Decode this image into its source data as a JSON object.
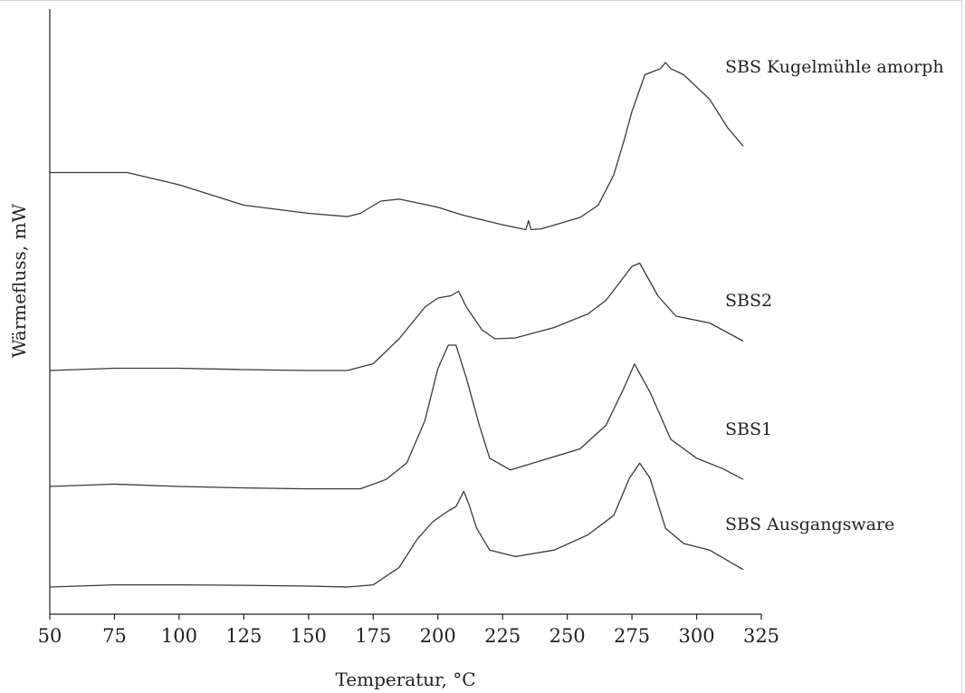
{
  "chart_data": {
    "type": "line",
    "title": "",
    "xlabel": "Temperatur, °C",
    "ylabel": "Wärmefluss, mW",
    "xlim": [
      50,
      325
    ],
    "x_ticks": [
      50,
      75,
      100,
      125,
      150,
      175,
      200,
      225,
      250,
      275,
      300,
      325
    ],
    "y_ticks_shown": false,
    "grid": false,
    "legend": "labels next to curves (right)",
    "y_unit": "arbitrary offset heat flow",
    "series": [
      {
        "name": "SBS Kugelmühle amorph",
        "points": [
          [
            50,
            0.5
          ],
          [
            80,
            0.5
          ],
          [
            100,
            0.2
          ],
          [
            125,
            -0.3
          ],
          [
            150,
            -0.5
          ],
          [
            165,
            -0.58
          ],
          [
            170,
            -0.5
          ],
          [
            178,
            -0.2
          ],
          [
            185,
            -0.15
          ],
          [
            200,
            -0.35
          ],
          [
            210,
            -0.55
          ],
          [
            225,
            -0.78
          ],
          [
            234,
            -0.9
          ],
          [
            235,
            -0.68
          ],
          [
            236,
            -0.9
          ],
          [
            240,
            -0.88
          ],
          [
            255,
            -0.6
          ],
          [
            262,
            -0.3
          ],
          [
            268,
            0.45
          ],
          [
            272,
            1.3
          ],
          [
            275,
            2.0
          ],
          [
            280,
            2.9
          ],
          [
            284,
            3.0
          ],
          [
            286,
            3.05
          ],
          [
            288,
            3.2
          ],
          [
            290,
            3.05
          ],
          [
            295,
            2.9
          ],
          [
            305,
            2.3
          ],
          [
            312,
            1.6
          ],
          [
            318,
            1.15
          ]
        ]
      },
      {
        "name": "SBS2",
        "points": [
          [
            50,
            0
          ],
          [
            75,
            0.05
          ],
          [
            100,
            0.05
          ],
          [
            125,
            0.02
          ],
          [
            150,
            0
          ],
          [
            165,
            0
          ],
          [
            175,
            0.15
          ],
          [
            185,
            0.7
          ],
          [
            195,
            1.4
          ],
          [
            200,
            1.6
          ],
          [
            205,
            1.65
          ],
          [
            208,
            1.75
          ],
          [
            211,
            1.4
          ],
          [
            217,
            0.9
          ],
          [
            222,
            0.7
          ],
          [
            230,
            0.72
          ],
          [
            245,
            0.95
          ],
          [
            258,
            1.25
          ],
          [
            265,
            1.55
          ],
          [
            275,
            2.3
          ],
          [
            278,
            2.37
          ],
          [
            285,
            1.65
          ],
          [
            292,
            1.2
          ],
          [
            305,
            1.05
          ],
          [
            318,
            0.65
          ]
        ]
      },
      {
        "name": "SBS1",
        "points": [
          [
            50,
            0
          ],
          [
            75,
            0.05
          ],
          [
            100,
            0
          ],
          [
            125,
            -0.03
          ],
          [
            150,
            -0.05
          ],
          [
            170,
            -0.05
          ],
          [
            180,
            0.15
          ],
          [
            188,
            0.5
          ],
          [
            195,
            1.4
          ],
          [
            200,
            2.5
          ],
          [
            204,
            3.0
          ],
          [
            207,
            3.0
          ],
          [
            211,
            2.3
          ],
          [
            216,
            1.3
          ],
          [
            220,
            0.6
          ],
          [
            228,
            0.35
          ],
          [
            240,
            0.55
          ],
          [
            255,
            0.8
          ],
          [
            265,
            1.3
          ],
          [
            272,
            2.1
          ],
          [
            276,
            2.6
          ],
          [
            282,
            2.0
          ],
          [
            290,
            1.0
          ],
          [
            300,
            0.6
          ],
          [
            310,
            0.38
          ],
          [
            318,
            0.15
          ]
        ]
      },
      {
        "name": "SBS Ausgangsware",
        "points": [
          [
            50,
            0
          ],
          [
            75,
            0.05
          ],
          [
            100,
            0.05
          ],
          [
            125,
            0.04
          ],
          [
            150,
            0.02
          ],
          [
            165,
            0
          ],
          [
            175,
            0.05
          ],
          [
            185,
            0.45
          ],
          [
            192,
            1.1
          ],
          [
            198,
            1.5
          ],
          [
            204,
            1.75
          ],
          [
            207,
            1.85
          ],
          [
            210,
            2.2
          ],
          [
            212,
            1.9
          ],
          [
            215,
            1.35
          ],
          [
            220,
            0.85
          ],
          [
            230,
            0.7
          ],
          [
            245,
            0.85
          ],
          [
            258,
            1.2
          ],
          [
            268,
            1.65
          ],
          [
            274,
            2.5
          ],
          [
            278,
            2.85
          ],
          [
            282,
            2.5
          ],
          [
            288,
            1.35
          ],
          [
            295,
            1.0
          ],
          [
            305,
            0.85
          ],
          [
            318,
            0.4
          ]
        ]
      }
    ]
  }
}
